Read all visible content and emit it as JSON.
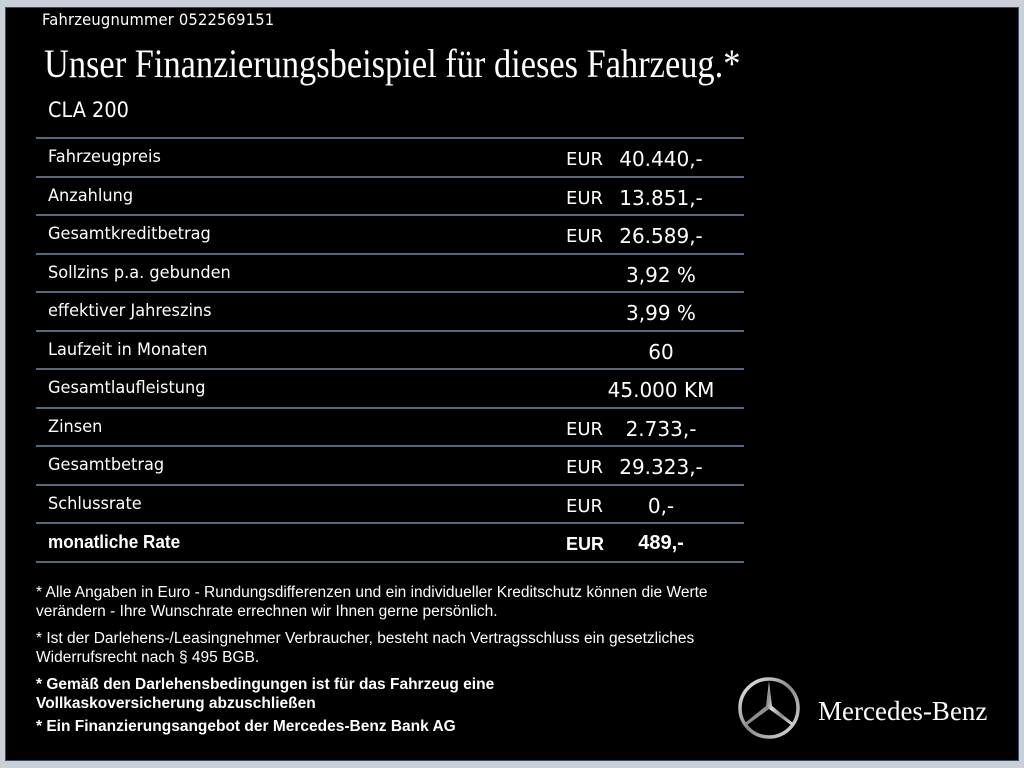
{
  "vehicle_number": "Fahrzeugnummer  0522569151",
  "title": "Unser Finanzierungsbeispiel für dieses Fahrzeug.*",
  "model": "CLA 200",
  "rows": [
    {
      "label": "Fahrzeugpreis",
      "currency": "EUR",
      "value": "40.440,-"
    },
    {
      "label": "Anzahlung",
      "currency": "EUR",
      "value": "13.851,-"
    },
    {
      "label": "Gesamtkreditbetrag",
      "currency": "EUR",
      "value": "26.589,-"
    },
    {
      "label": "Sollzins p.a. gebunden",
      "currency": "",
      "value": "3,92 %"
    },
    {
      "label": "effektiver Jahreszins",
      "currency": "",
      "value": "3,99 %"
    },
    {
      "label": "Laufzeit in Monaten",
      "currency": "",
      "value": "60"
    },
    {
      "label": "Gesamtlaufleistung",
      "currency": "",
      "value": "45.000 KM"
    },
    {
      "label": "Zinsen",
      "currency": "EUR",
      "value": "2.733,-"
    },
    {
      "label": "Gesamtbetrag",
      "currency": "EUR",
      "value": "29.323,-"
    },
    {
      "label": "Schlussrate",
      "currency": "EUR",
      "value": "0,-"
    },
    {
      "label": "monatliche Rate",
      "currency": "EUR",
      "value": "489,-"
    }
  ],
  "notes": [
    "* Alle Angaben in Euro - Rundungsdifferenzen und ein individueller Kreditschutz können die Werte verändern - Ihre Wunschrate errechnen wir Ihnen gerne persönlich.",
    "* Ist der Darlehens-/Leasingnehmer Verbraucher, besteht nach Vertragsschluss ein gesetzliches Widerrufsrecht nach § 495 BGB.",
    "* Gemäß den Darlehensbedingungen ist für das Fahrzeug eine Vollkaskoversicherung abzuschließen",
    "* Ein Finanzierungsangebot der Mercedes-Benz Bank AG"
  ],
  "brand": "Mercedes-Benz",
  "colors": {
    "background": "#000000",
    "frame": "#c9d0d8",
    "divider": "#56687a"
  }
}
